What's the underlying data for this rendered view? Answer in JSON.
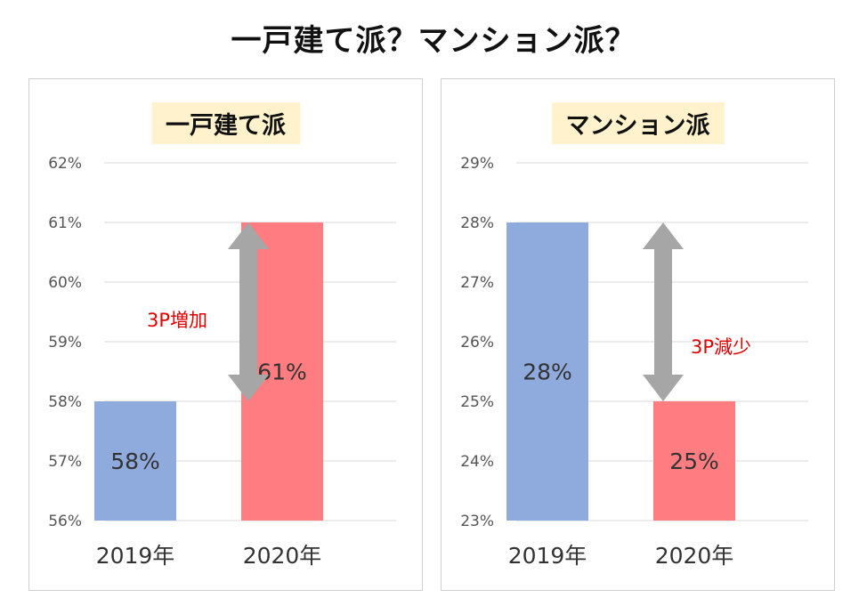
{
  "title": "一戸建て派？マンション派？",
  "colors": {
    "year_2019": "#8faadc",
    "year_2020": "#ff7c80",
    "arrow": "#a6a6a6",
    "annotation": "#e00000",
    "panel_title_bg": "#fff2cc"
  },
  "chart_data": [
    {
      "type": "bar",
      "title": "一戸建て派",
      "categories": [
        "2019年",
        "2020年"
      ],
      "values": [
        58,
        61
      ],
      "data_labels": [
        "58%",
        "61%"
      ],
      "ylim": [
        56,
        62
      ],
      "yticks": [
        "56%",
        "57%",
        "58%",
        "59%",
        "60%",
        "61%",
        "62%"
      ],
      "grid": true,
      "bar_colors": [
        "#8faadc",
        "#ff7c80"
      ],
      "annotation": {
        "text": "3P増加",
        "from": 58,
        "to": 61
      }
    },
    {
      "type": "bar",
      "title": "マンション派",
      "categories": [
        "2019年",
        "2020年"
      ],
      "values": [
        28,
        25
      ],
      "data_labels": [
        "28%",
        "25%"
      ],
      "ylim": [
        23,
        29
      ],
      "yticks": [
        "23%",
        "24%",
        "25%",
        "26%",
        "27%",
        "28%",
        "29%"
      ],
      "grid": true,
      "bar_colors": [
        "#8faadc",
        "#ff7c80"
      ],
      "annotation": {
        "text": "3P減少",
        "from": 28,
        "to": 25
      }
    }
  ]
}
